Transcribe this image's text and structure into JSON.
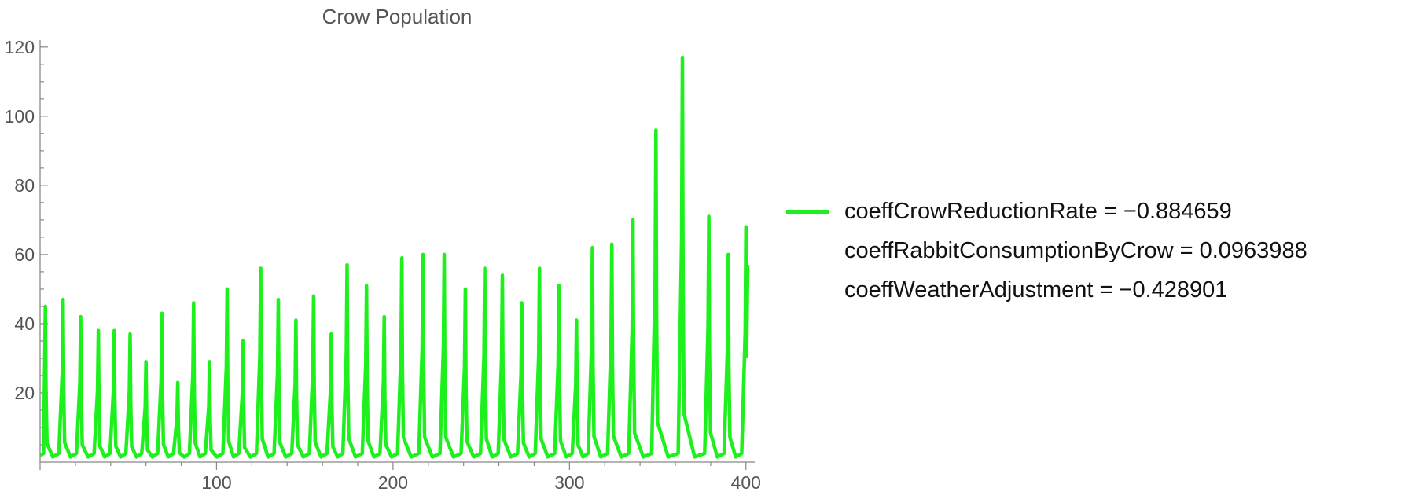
{
  "chart_data": {
    "type": "line",
    "title": "Crow Population",
    "xlabel": "",
    "ylabel": "",
    "xlim": [
      0,
      405
    ],
    "ylim": [
      0,
      122
    ],
    "x_ticks": [
      100,
      200,
      300,
      400
    ],
    "y_ticks": [
      20,
      40,
      60,
      80,
      100,
      120
    ],
    "grid": false,
    "legend_position": "right",
    "series": [
      {
        "color": "#1ef01e",
        "peaks": [
          {
            "x": 3,
            "y": 45
          },
          {
            "x": 13,
            "y": 47
          },
          {
            "x": 23,
            "y": 42
          },
          {
            "x": 33,
            "y": 38
          },
          {
            "x": 42,
            "y": 38
          },
          {
            "x": 51,
            "y": 37
          },
          {
            "x": 60,
            "y": 29
          },
          {
            "x": 69,
            "y": 43
          },
          {
            "x": 78,
            "y": 23
          },
          {
            "x": 87,
            "y": 46
          },
          {
            "x": 96,
            "y": 29
          },
          {
            "x": 106,
            "y": 50
          },
          {
            "x": 115,
            "y": 35
          },
          {
            "x": 125,
            "y": 56
          },
          {
            "x": 135,
            "y": 47
          },
          {
            "x": 145,
            "y": 41
          },
          {
            "x": 155,
            "y": 48
          },
          {
            "x": 165,
            "y": 37
          },
          {
            "x": 174,
            "y": 57
          },
          {
            "x": 185,
            "y": 51
          },
          {
            "x": 195,
            "y": 42
          },
          {
            "x": 205,
            "y": 59
          },
          {
            "x": 217,
            "y": 60
          },
          {
            "x": 229,
            "y": 60
          },
          {
            "x": 241,
            "y": 50
          },
          {
            "x": 252,
            "y": 56
          },
          {
            "x": 262,
            "y": 54
          },
          {
            "x": 273,
            "y": 46
          },
          {
            "x": 283,
            "y": 56
          },
          {
            "x": 294,
            "y": 51
          },
          {
            "x": 304,
            "y": 41
          },
          {
            "x": 313,
            "y": 62
          },
          {
            "x": 324,
            "y": 63
          },
          {
            "x": 336,
            "y": 70
          },
          {
            "x": 349,
            "y": 96
          },
          {
            "x": 364,
            "y": 117
          },
          {
            "x": 379,
            "y": 71
          },
          {
            "x": 390,
            "y": 60
          },
          {
            "x": 400,
            "y": 68
          }
        ],
        "end_value": {
          "x": 401,
          "y": 57
        }
      }
    ]
  },
  "legend": {
    "line1": "coeffCrowReductionRate = −0.884659",
    "line2": "coeffRabbitConsumptionByCrow = 0.0963988",
    "line3": "coeffWeatherAdjustment = −0.428901"
  }
}
